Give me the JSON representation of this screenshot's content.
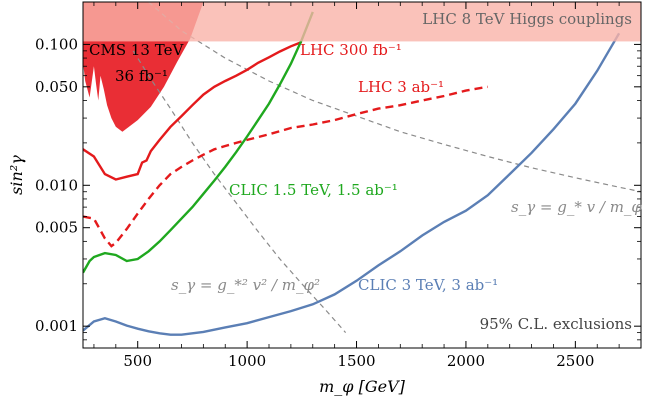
{
  "chart_data": {
    "type": "line",
    "xlabel": "m_φ [GeV]",
    "ylabel": "sin²γ",
    "xlim": [
      250,
      2800
    ],
    "ylim": [
      0.0007,
      0.2
    ],
    "yscale": "log",
    "x_ticks": [
      500,
      1000,
      1500,
      2000,
      2500
    ],
    "x_tick_labels": [
      "500",
      "1000",
      "1500",
      "2000",
      "2500"
    ],
    "y_ticks": [
      0.001,
      0.005,
      0.01,
      0.05,
      0.1
    ],
    "y_tick_labels": [
      "0.001",
      "0.005",
      "0.010",
      "0.050",
      "0.100"
    ],
    "grid": false,
    "colors": {
      "cms": "#e8232a",
      "lhc": "#e41a1c",
      "clic15": "#1fa81f",
      "clic3": "#5b7fb5",
      "guide": "#8a8a8a",
      "band": "#f9b3a9",
      "band_text": "#666666"
    },
    "series": [
      {
        "name": "CMS 13 TeV 36 fb⁻¹",
        "style": "filled",
        "x": [
          250,
          260,
          280,
          300,
          310,
          320,
          330,
          345,
          360,
          380,
          400,
          430,
          460,
          500,
          560,
          620,
          680,
          740,
          800
        ],
        "y": [
          0.075,
          0.055,
          0.042,
          0.07,
          0.052,
          0.04,
          0.06,
          0.048,
          0.037,
          0.03,
          0.026,
          0.024,
          0.026,
          0.029,
          0.036,
          0.05,
          0.075,
          0.11,
          0.2
        ]
      },
      {
        "name": "LHC 300 fb⁻¹",
        "style": "solid",
        "x": [
          250,
          300,
          350,
          400,
          450,
          500,
          520,
          540,
          560,
          600,
          650,
          700,
          750,
          800,
          850,
          900,
          950,
          1000,
          1050,
          1100,
          1150,
          1200,
          1250
        ],
        "y": [
          0.018,
          0.016,
          0.012,
          0.011,
          0.0115,
          0.012,
          0.0145,
          0.015,
          0.0175,
          0.021,
          0.026,
          0.031,
          0.037,
          0.044,
          0.05,
          0.055,
          0.06,
          0.066,
          0.074,
          0.081,
          0.089,
          0.097,
          0.104
        ]
      },
      {
        "name": "LHC 3 ab⁻¹",
        "style": "dashed",
        "x": [
          250,
          300,
          350,
          380,
          400,
          450,
          500,
          550,
          600,
          650,
          700,
          750,
          800,
          850,
          900,
          950,
          1000,
          1100,
          1200,
          1300,
          1400,
          1500,
          1600,
          1700,
          1800,
          1900,
          2000,
          2100
        ],
        "y": [
          0.006,
          0.0058,
          0.0042,
          0.0037,
          0.0039,
          0.0049,
          0.0063,
          0.008,
          0.01,
          0.012,
          0.0135,
          0.015,
          0.0165,
          0.018,
          0.019,
          0.02,
          0.021,
          0.023,
          0.0255,
          0.027,
          0.029,
          0.032,
          0.035,
          0.037,
          0.04,
          0.043,
          0.047,
          0.05
        ]
      },
      {
        "name": "CLIC 1.5 TeV, 1.5 ab⁻¹",
        "style": "solid",
        "x": [
          250,
          280,
          300,
          350,
          400,
          450,
          500,
          550,
          600,
          650,
          700,
          750,
          800,
          850,
          900,
          950,
          1000,
          1050,
          1100,
          1150,
          1200,
          1250,
          1300
        ],
        "y": [
          0.0024,
          0.0029,
          0.0031,
          0.0033,
          0.0032,
          0.0029,
          0.003,
          0.0034,
          0.004,
          0.0048,
          0.0058,
          0.007,
          0.0087,
          0.0108,
          0.0135,
          0.0172,
          0.0222,
          0.029,
          0.038,
          0.052,
          0.073,
          0.108,
          0.17
        ]
      },
      {
        "name": "CLIC 3 TeV, 3 ab⁻¹",
        "style": "solid",
        "x": [
          250,
          300,
          350,
          400,
          450,
          500,
          550,
          600,
          650,
          700,
          800,
          900,
          1000,
          1100,
          1200,
          1300,
          1400,
          1500,
          1600,
          1700,
          1800,
          1900,
          2000,
          2100,
          2200,
          2300,
          2400,
          2500,
          2600,
          2700
        ],
        "y": [
          0.00093,
          0.00108,
          0.00114,
          0.00108,
          0.00101,
          0.00096,
          0.00092,
          0.00089,
          0.00087,
          0.00087,
          0.00091,
          0.00098,
          0.00105,
          0.00116,
          0.00128,
          0.00143,
          0.00168,
          0.0021,
          0.0027,
          0.0034,
          0.0044,
          0.0055,
          0.0066,
          0.0085,
          0.012,
          0.017,
          0.025,
          0.038,
          0.065,
          0.12
        ]
      },
      {
        "name": "s_γ = g_* v / m_φ",
        "style": "guide",
        "x": [
          550,
          700,
          900,
          1100,
          1300,
          1500,
          1700,
          1900,
          2100,
          2300,
          2500,
          2700,
          2800
        ],
        "y": [
          0.2,
          0.125,
          0.08,
          0.055,
          0.04,
          0.031,
          0.024,
          0.0195,
          0.016,
          0.0133,
          0.0113,
          0.0097,
          0.009
        ]
      },
      {
        "name": "s_γ = g_*² v² / m_φ²",
        "style": "guide",
        "x": [
          480,
          550,
          650,
          750,
          850,
          950,
          1050,
          1150,
          1250,
          1350,
          1450
        ],
        "y": [
          0.09,
          0.06,
          0.035,
          0.02,
          0.012,
          0.0075,
          0.0047,
          0.003,
          0.002,
          0.00135,
          0.0009
        ]
      }
    ],
    "band": {
      "label": "LHC 8 TeV Higgs couplings",
      "y_from": 0.105,
      "y_to": 0.2
    },
    "annotations": [
      {
        "id": "cms1",
        "text": "CMS 13 TeV",
        "color": "#000000"
      },
      {
        "id": "cms2",
        "text": "36 fb⁻¹",
        "color": "#000000"
      },
      {
        "id": "lhc300",
        "text": "LHC 300 fb⁻¹",
        "color": "#e41a1c"
      },
      {
        "id": "lhc3ab",
        "text": "LHC 3 ab⁻¹",
        "color": "#e41a1c"
      },
      {
        "id": "clic15",
        "text": "CLIC 1.5 TeV, 1.5 ab⁻¹",
        "color": "#1fa81f"
      },
      {
        "id": "clic3",
        "text": "CLIC 3 TeV, 3 ab⁻¹",
        "color": "#5b7fb5"
      },
      {
        "id": "guide1",
        "text": "s_γ = g_* v / m_φ",
        "color": "#8a8a8a"
      },
      {
        "id": "guide2",
        "text": "s_γ = g_*² v² / m_φ²",
        "color": "#8a8a8a"
      },
      {
        "id": "cl",
        "text": "95% C.L. exclusions",
        "color": "#444444"
      }
    ]
  }
}
